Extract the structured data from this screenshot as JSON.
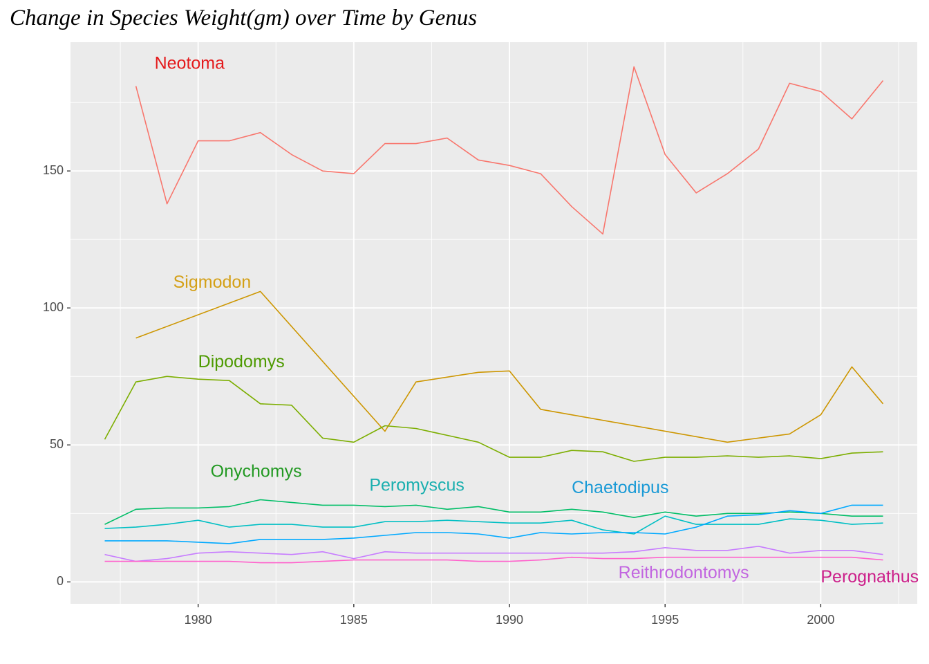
{
  "title": "Change in Species Weight(gm) over Time by Genus",
  "chart_data": {
    "type": "line",
    "title": "Change in Species Weight(gm) over Time by Genus",
    "xlabel": "",
    "ylabel": "",
    "xlim": [
      1975.9,
      2003.1
    ],
    "ylim": [
      -8,
      197
    ],
    "x_ticks": [
      1980,
      1985,
      1990,
      1995,
      2000
    ],
    "y_ticks": [
      0,
      50,
      100,
      150
    ],
    "grid": true,
    "legend": "none",
    "series": [
      {
        "name": "Neotoma",
        "color": "#F8766D",
        "label_color": "#E41A1C",
        "label_pos": [
          1978.6,
          189
        ],
        "x": [
          1978,
          1979,
          1980,
          1981,
          1982,
          1983,
          1984,
          1985,
          1986,
          1987,
          1988,
          1989,
          1990,
          1991,
          1992,
          1993,
          1994,
          1995,
          1996,
          1997,
          1998,
          1999,
          2000,
          2001,
          2002
        ],
        "y": [
          181,
          138,
          161,
          161,
          164,
          156,
          150,
          149,
          160,
          160,
          162,
          154,
          152,
          149,
          137,
          127,
          188,
          156,
          142,
          149,
          158,
          182,
          179,
          169,
          183
        ]
      },
      {
        "name": "Sigmodon",
        "color": "#CD9600",
        "label_color": "#D4A017",
        "label_pos": [
          1979.2,
          109
        ],
        "x": [
          1978,
          1982,
          1986,
          1987,
          1989,
          1990,
          1991,
          1997,
          1999,
          2000,
          2001,
          2002
        ],
        "y": [
          89,
          106,
          55,
          73,
          76.5,
          77,
          63,
          51,
          54,
          61,
          78.5,
          65
        ]
      },
      {
        "name": "Dipodomys",
        "color": "#7CAE00",
        "label_color": "#4D9A00",
        "label_pos": [
          1980.0,
          80
        ],
        "x": [
          1977,
          1978,
          1979,
          1980,
          1981,
          1982,
          1983,
          1984,
          1985,
          1986,
          1987,
          1988,
          1989,
          1990,
          1991,
          1992,
          1993,
          1994,
          1995,
          1996,
          1997,
          1998,
          1999,
          2000,
          2001,
          2002
        ],
        "y": [
          52,
          73,
          75,
          74,
          73.5,
          65,
          64.5,
          52.5,
          51,
          57,
          56,
          53.5,
          51,
          45.5,
          45.5,
          48,
          47.5,
          44,
          45.5,
          45.5,
          46,
          45.5,
          46,
          45,
          47,
          47.5
        ]
      },
      {
        "name": "Onychomys",
        "color": "#00BE67",
        "label_color": "#229922",
        "label_pos": [
          1980.4,
          40
        ],
        "x": [
          1977,
          1978,
          1979,
          1980,
          1981,
          1982,
          1983,
          1984,
          1985,
          1986,
          1987,
          1988,
          1989,
          1990,
          1991,
          1992,
          1993,
          1994,
          1995,
          1996,
          1997,
          1998,
          1999,
          2000,
          2001,
          2002
        ],
        "y": [
          21,
          26.5,
          27,
          27,
          27.5,
          30,
          29,
          28,
          28,
          27.5,
          28,
          26.5,
          27.5,
          25.5,
          25.5,
          26.5,
          25.5,
          23.5,
          25.5,
          24,
          25,
          25,
          25.5,
          25,
          24,
          24
        ]
      },
      {
        "name": "Peromyscus",
        "color": "#00BFC4",
        "label_color": "#1AAFAF",
        "label_pos": [
          1985.5,
          35
        ],
        "x": [
          1977,
          1978,
          1979,
          1980,
          1981,
          1982,
          1983,
          1984,
          1985,
          1986,
          1987,
          1988,
          1989,
          1990,
          1991,
          1992,
          1993,
          1994,
          1995,
          1996,
          1997,
          1998,
          1999,
          2000,
          2001,
          2002
        ],
        "y": [
          19.5,
          20,
          21,
          22.5,
          20,
          21,
          21,
          20,
          20,
          22,
          22,
          22.5,
          22,
          21.5,
          21.5,
          22.5,
          19,
          17.5,
          24,
          21,
          21,
          21,
          23,
          22.5,
          21,
          21.5
        ]
      },
      {
        "name": "Chaetodipus",
        "color": "#00A9FF",
        "label_color": "#1A9AD6",
        "label_pos": [
          1992.0,
          34
        ],
        "x": [
          1977,
          1978,
          1979,
          1980,
          1981,
          1982,
          1983,
          1984,
          1985,
          1986,
          1987,
          1988,
          1989,
          1990,
          1991,
          1992,
          1993,
          1994,
          1995,
          1996,
          1997,
          1998,
          1999,
          2000,
          2001,
          2002
        ],
        "y": [
          15,
          15,
          15,
          14.5,
          14,
          15.5,
          15.5,
          15.5,
          16,
          17,
          18,
          18,
          17.5,
          16,
          18,
          17.5,
          18,
          18,
          17.5,
          20,
          24,
          24.5,
          26,
          25,
          28,
          28
        ]
      },
      {
        "name": "Reithrodontomys",
        "color": "#C77CFF",
        "label_color": "#C266E0",
        "label_pos": [
          1993.5,
          3
        ],
        "x": [
          1977,
          1978,
          1979,
          1980,
          1981,
          1982,
          1983,
          1984,
          1985,
          1986,
          1987,
          1988,
          1989,
          1990,
          1991,
          1992,
          1993,
          1994,
          1995,
          1996,
          1997,
          1998,
          1999,
          2000,
          2001,
          2002
        ],
        "y": [
          10,
          7.5,
          8.5,
          10.5,
          11,
          10.5,
          10,
          11,
          8.5,
          11,
          10.5,
          10.5,
          10.5,
          10.5,
          10.5,
          10.5,
          10.5,
          11,
          12.5,
          11.5,
          11.5,
          13,
          10.5,
          11.5,
          11.5,
          10
        ]
      },
      {
        "name": "Perognathus",
        "color": "#FF61CC",
        "label_color": "#CC1F8A",
        "label_pos": [
          2000.0,
          1.5
        ],
        "x": [
          1977,
          1978,
          1979,
          1980,
          1981,
          1982,
          1983,
          1984,
          1985,
          1986,
          1987,
          1988,
          1989,
          1990,
          1991,
          1992,
          1993,
          1994,
          1995,
          1996,
          1997,
          1998,
          1999,
          2000,
          2001,
          2002
        ],
        "y": [
          7.5,
          7.5,
          7.5,
          7.5,
          7.5,
          7,
          7,
          7.5,
          8,
          8,
          8,
          8,
          7.5,
          7.5,
          8,
          9,
          8.5,
          8.5,
          9,
          9,
          9,
          9,
          9,
          9,
          9,
          8
        ]
      }
    ]
  }
}
